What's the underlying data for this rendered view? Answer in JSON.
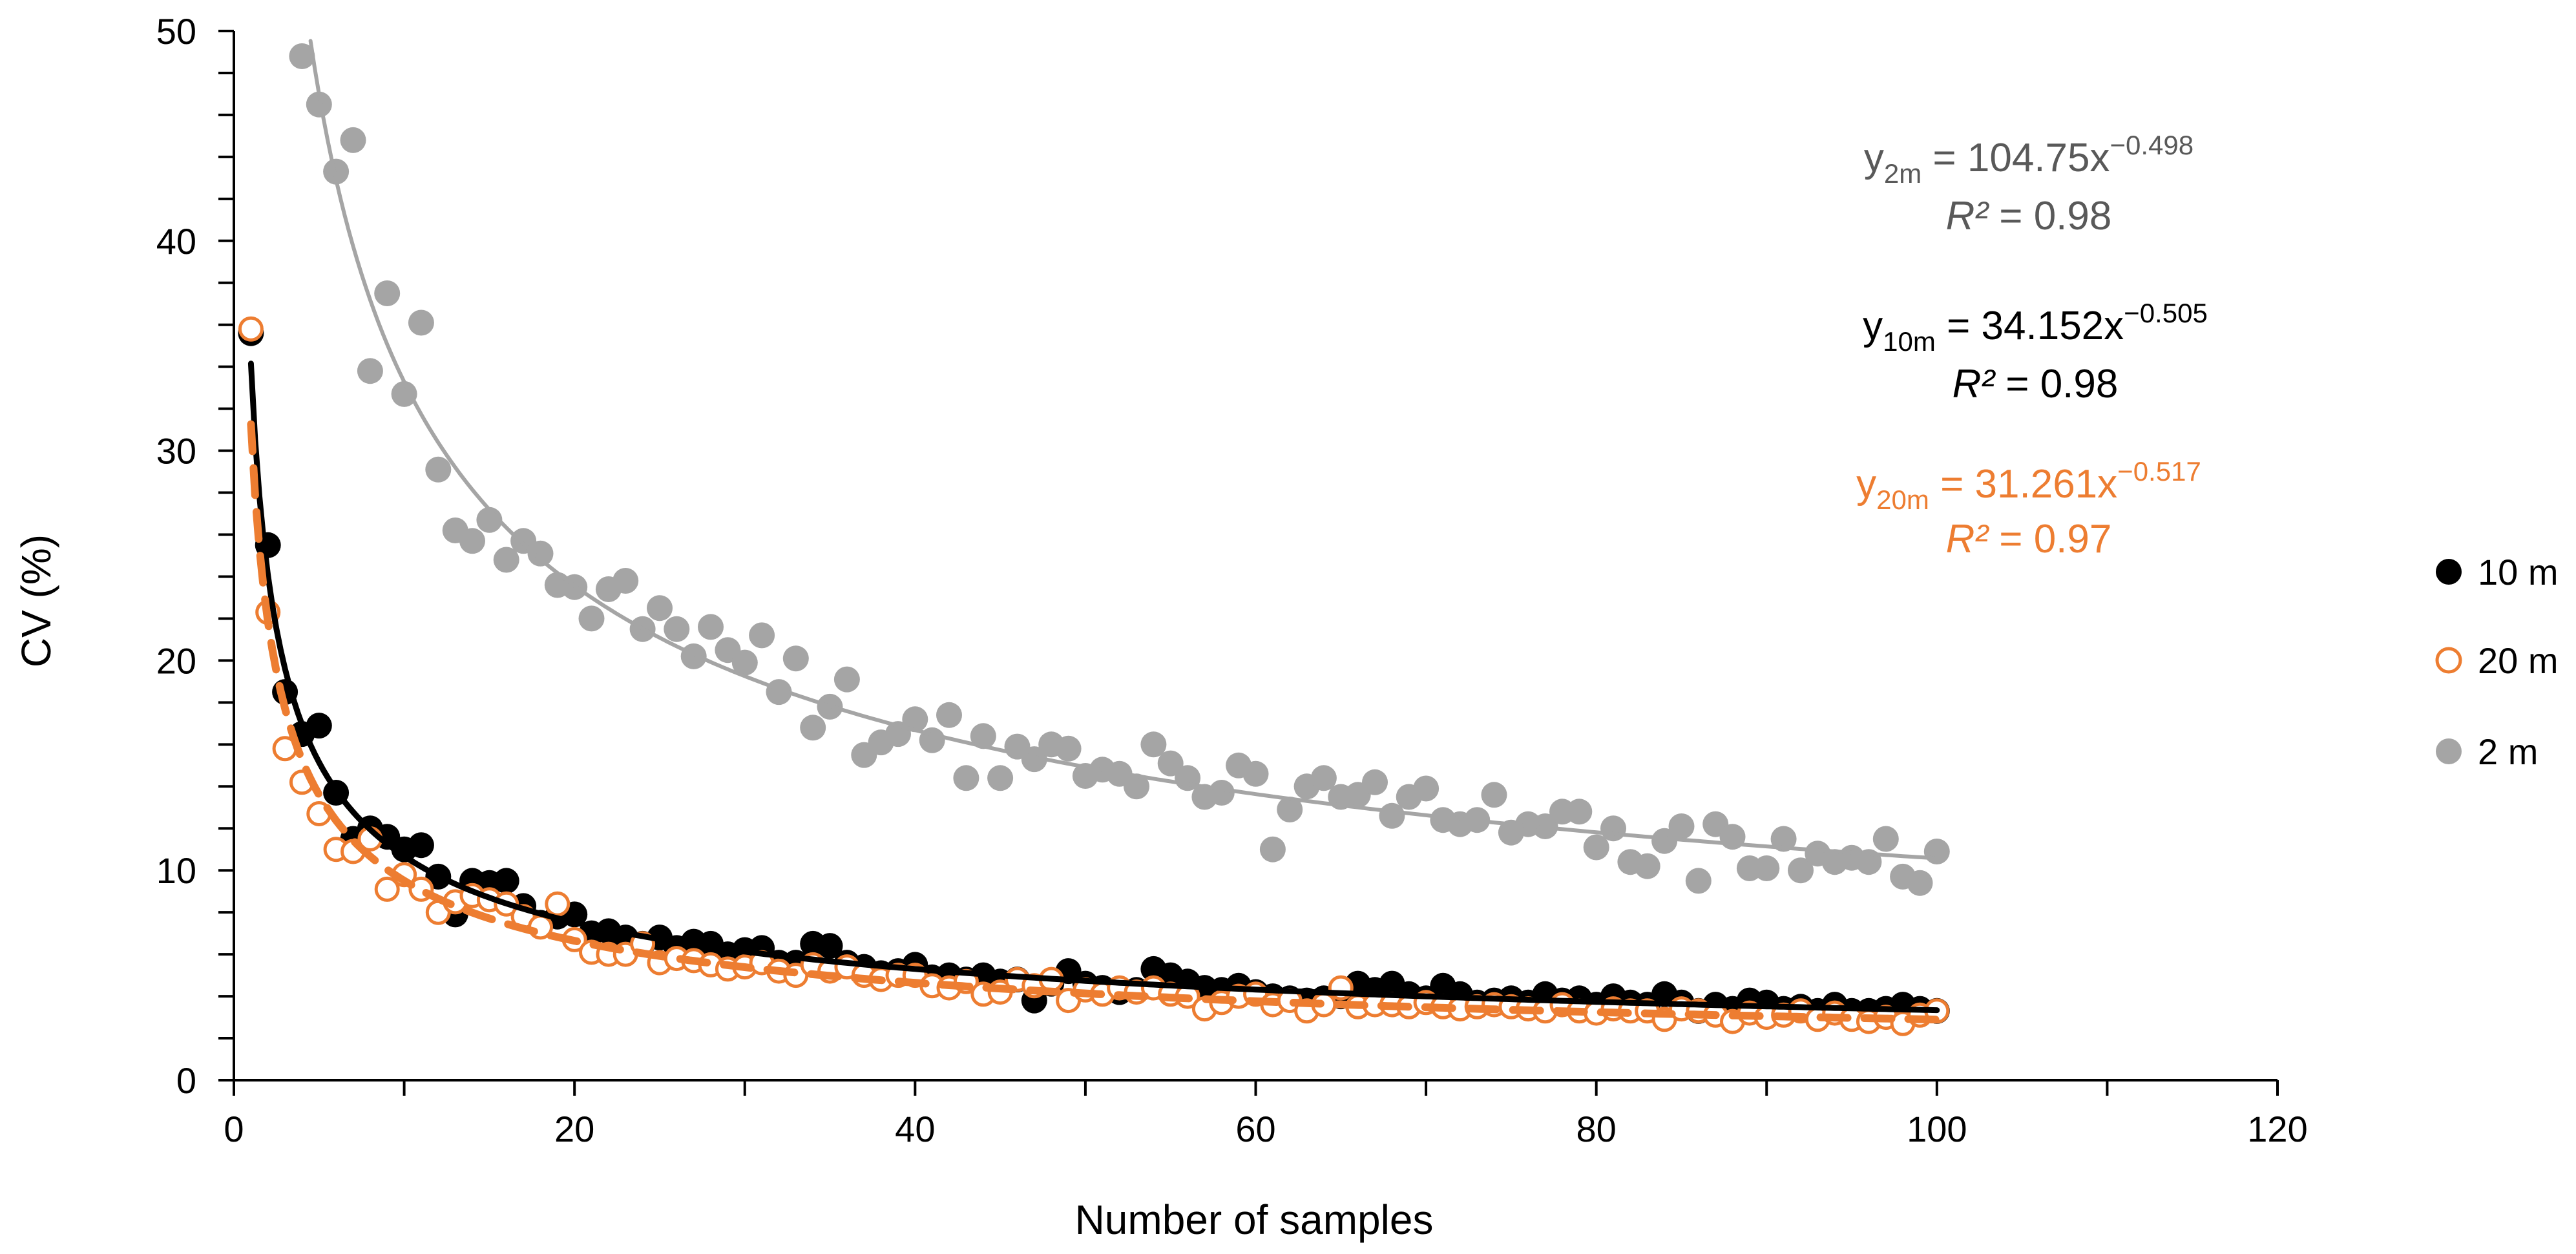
{
  "chart_data": {
    "type": "scatter",
    "title": "",
    "xlabel": "Number of samples",
    "ylabel": "CV (%)",
    "xlim": [
      0,
      120
    ],
    "ylim": [
      0,
      50
    ],
    "x_ticks": [
      "0",
      "20",
      "40",
      "60",
      "80",
      "100",
      "120"
    ],
    "y_ticks": [
      "0",
      "10",
      "20",
      "30",
      "40",
      "50"
    ],
    "grid": false,
    "legend_position": "right",
    "series": [
      {
        "name": "10 m",
        "marker": "filled-circle",
        "color": "#000000",
        "x": [
          1,
          2,
          3,
          4,
          5,
          6,
          7,
          8,
          9,
          10,
          11,
          12,
          13,
          14,
          15,
          16,
          17,
          18,
          19,
          20,
          21,
          22,
          23,
          24,
          25,
          26,
          27,
          28,
          29,
          30,
          31,
          32,
          33,
          34,
          35,
          36,
          37,
          38,
          39,
          40,
          41,
          42,
          43,
          44,
          45,
          46,
          47,
          48,
          49,
          50,
          51,
          52,
          53,
          54,
          55,
          56,
          57,
          58,
          59,
          60,
          61,
          62,
          63,
          64,
          65,
          66,
          67,
          68,
          69,
          70,
          71,
          72,
          73,
          74,
          75,
          76,
          77,
          78,
          79,
          80,
          81,
          82,
          83,
          84,
          85,
          86,
          87,
          88,
          89,
          90,
          91,
          92,
          93,
          94,
          95,
          96,
          97,
          98,
          99,
          100
        ],
        "y": [
          35.6,
          25.5,
          18.5,
          16.5,
          16.9,
          13.7,
          11.5,
          12.0,
          11.6,
          11.0,
          11.2,
          9.7,
          7.9,
          9.5,
          9.4,
          9.5,
          8.3,
          7.5,
          7.8,
          7.9,
          7.0,
          7.1,
          6.8,
          6.5,
          6.8,
          6.3,
          6.6,
          6.5,
          6.0,
          6.2,
          6.3,
          5.6,
          5.6,
          6.5,
          6.4,
          5.6,
          5.4,
          5.1,
          5.2,
          5.5,
          4.9,
          5.0,
          4.8,
          5.0,
          4.7,
          4.8,
          3.8,
          4.6,
          5.2,
          4.6,
          4.4,
          4.2,
          4.3,
          5.3,
          5.0,
          4.7,
          4.4,
          4.3,
          4.5,
          4.2,
          4.0,
          3.9,
          3.8,
          3.9,
          4.0,
          4.6,
          4.3,
          4.6,
          4.1,
          3.9,
          4.5,
          4.1,
          3.7,
          3.8,
          3.9,
          3.7,
          4.1,
          3.8,
          3.9,
          3.6,
          4.0,
          3.7,
          3.6,
          4.1,
          3.7,
          3.3,
          3.6,
          3.4,
          3.8,
          3.7,
          3.4,
          3.5,
          3.3,
          3.6,
          3.3,
          3.3,
          3.4,
          3.6,
          3.4,
          3.3
        ]
      },
      {
        "name": "20 m",
        "marker": "open-circle",
        "color": "#ED7D31",
        "x": [
          1,
          2,
          3,
          4,
          5,
          6,
          7,
          8,
          9,
          10,
          11,
          12,
          13,
          14,
          15,
          16,
          17,
          18,
          19,
          20,
          21,
          22,
          23,
          24,
          25,
          26,
          27,
          28,
          29,
          30,
          31,
          32,
          33,
          34,
          35,
          36,
          37,
          38,
          39,
          40,
          41,
          42,
          43,
          44,
          45,
          46,
          47,
          48,
          49,
          50,
          51,
          52,
          53,
          54,
          55,
          56,
          57,
          58,
          59,
          60,
          61,
          62,
          63,
          64,
          65,
          66,
          67,
          68,
          69,
          70,
          71,
          72,
          73,
          74,
          75,
          76,
          77,
          78,
          79,
          80,
          81,
          82,
          83,
          84,
          85,
          86,
          87,
          88,
          89,
          90,
          91,
          92,
          93,
          94,
          95,
          96,
          97,
          98,
          99,
          100
        ],
        "y": [
          35.8,
          22.3,
          15.8,
          14.2,
          12.7,
          11.0,
          10.9,
          11.5,
          9.1,
          9.8,
          9.1,
          8.0,
          8.5,
          8.8,
          8.6,
          8.4,
          7.8,
          7.3,
          8.4,
          6.7,
          6.1,
          6.0,
          6.0,
          6.5,
          5.6,
          5.8,
          5.7,
          5.5,
          5.3,
          5.4,
          5.6,
          5.2,
          5.0,
          5.5,
          5.2,
          5.4,
          5.0,
          4.8,
          5.0,
          5.0,
          4.5,
          4.4,
          4.7,
          4.1,
          4.2,
          4.8,
          4.5,
          4.8,
          3.8,
          4.3,
          4.1,
          4.4,
          4.2,
          4.4,
          4.1,
          4.0,
          3.4,
          3.7,
          4.0,
          4.1,
          3.6,
          3.8,
          3.3,
          3.6,
          4.4,
          3.5,
          3.6,
          3.6,
          3.5,
          3.7,
          3.5,
          3.4,
          3.5,
          3.6,
          3.5,
          3.4,
          3.3,
          3.6,
          3.3,
          3.2,
          3.4,
          3.3,
          3.3,
          2.9,
          3.4,
          3.3,
          3.1,
          2.8,
          3.2,
          3.0,
          3.1,
          3.3,
          2.9,
          3.2,
          2.9,
          2.8,
          3.0,
          2.7,
          3.1,
          3.3
        ]
      },
      {
        "name": "2 m",
        "marker": "filled-circle",
        "color": "#A5A5A5",
        "x": [
          4,
          5,
          6,
          7,
          8,
          9,
          10,
          11,
          12,
          13,
          14,
          15,
          16,
          17,
          18,
          19,
          20,
          21,
          22,
          23,
          24,
          25,
          26,
          27,
          28,
          29,
          30,
          31,
          32,
          33,
          34,
          35,
          36,
          37,
          38,
          39,
          40,
          41,
          42,
          43,
          44,
          45,
          46,
          47,
          48,
          49,
          50,
          51,
          52,
          53,
          54,
          55,
          56,
          57,
          58,
          59,
          60,
          61,
          62,
          63,
          64,
          65,
          66,
          67,
          68,
          69,
          70,
          71,
          72,
          73,
          74,
          75,
          76,
          77,
          78,
          79,
          80,
          81,
          82,
          83,
          84,
          85,
          86,
          87,
          88,
          89,
          90,
          91,
          92,
          93,
          94,
          95,
          96,
          97,
          98,
          99,
          100
        ],
        "y": [
          48.8,
          46.5,
          43.3,
          44.8,
          33.8,
          37.5,
          32.7,
          36.1,
          29.1,
          26.2,
          25.7,
          26.7,
          24.8,
          25.7,
          25.1,
          23.6,
          23.5,
          22.0,
          23.4,
          23.8,
          21.5,
          22.5,
          21.5,
          20.2,
          21.6,
          20.5,
          19.9,
          21.2,
          18.5,
          20.1,
          16.8,
          17.8,
          19.1,
          15.5,
          16.1,
          16.5,
          17.2,
          16.2,
          17.4,
          14.4,
          16.4,
          14.4,
          15.9,
          15.3,
          16.0,
          15.8,
          14.5,
          14.8,
          14.6,
          14.0,
          16.0,
          15.1,
          14.4,
          13.5,
          13.7,
          15.0,
          14.6,
          11.0,
          12.9,
          14.0,
          14.4,
          13.5,
          13.6,
          14.2,
          12.6,
          13.5,
          13.9,
          12.4,
          12.2,
          12.4,
          13.6,
          11.8,
          12.2,
          12.1,
          12.8,
          12.8,
          11.1,
          12.0,
          10.4,
          10.2,
          11.4,
          12.1,
          9.5,
          12.2,
          11.6,
          10.1,
          10.1,
          11.5,
          10.0,
          10.8,
          10.4,
          10.6,
          10.4,
          11.5,
          9.7,
          9.4,
          10.9
        ]
      }
    ],
    "trendlines": [
      {
        "series": "2 m",
        "kind": "power",
        "a": 104.75,
        "b": -0.498,
        "x_range": [
          4,
          100
        ],
        "color": "#A5A5A5",
        "style": "solid"
      },
      {
        "series": "10 m",
        "kind": "power",
        "a": 34.152,
        "b": -0.505,
        "x_range": [
          1,
          100
        ],
        "color": "#000000",
        "style": "solid"
      },
      {
        "series": "20 m",
        "kind": "power",
        "a": 31.261,
        "b": -0.517,
        "x_range": [
          1,
          100
        ],
        "color": "#ED7D31",
        "style": "dashed"
      }
    ],
    "annotations": [
      {
        "y_prefix": "y",
        "y_sub": "2m",
        "eq_rest": " = 104.75x",
        "eq_sup": "−0.498",
        "r2_label": "R²",
        "r2_rest": " = 0.98",
        "color": "#595959"
      },
      {
        "y_prefix": "y",
        "y_sub": "10m",
        "eq_rest": " = 34.152x",
        "eq_sup": "−0.505",
        "r2_label": "R²",
        "r2_rest": " = 0.98",
        "color": "#000000"
      },
      {
        "y_prefix": "y",
        "y_sub": "20m",
        "eq_rest": " = 31.261x",
        "eq_sup": "−0.517",
        "r2_label": "R²",
        "r2_rest": " = 0.97",
        "color": "#ED7D31"
      }
    ]
  }
}
